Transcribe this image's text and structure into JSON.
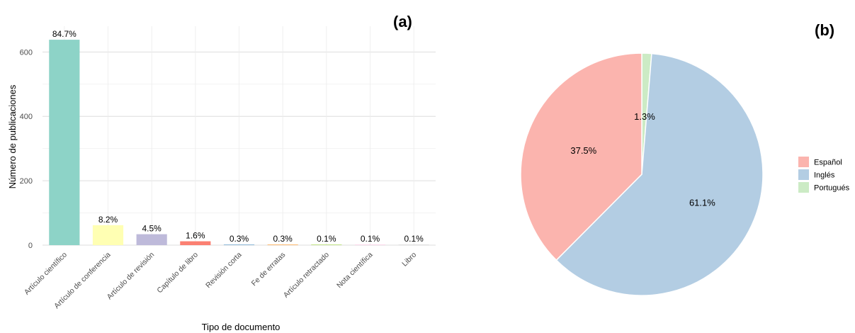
{
  "chart_data": [
    {
      "type": "bar",
      "panel_label": "(a)",
      "xlabel": "Tipo de documento",
      "ylabel": "Número de publicaciones",
      "ylim": [
        0,
        680
      ],
      "yticks": [
        "0",
        "200",
        "400",
        "600"
      ],
      "grid": true,
      "categories": [
        "Artículo científico",
        "Artículo de conferencia",
        "Artículo de revisión",
        "Capítulo de libro",
        "Revisión corta",
        "Fe de erratas",
        "Artículo retractado",
        "Nota científica",
        "Libro"
      ],
      "values": [
        638,
        62,
        34,
        12,
        2,
        2,
        1,
        1,
        1
      ],
      "labels": [
        "84.7%",
        "8.2%",
        "4.5%",
        "1.6%",
        "0.3%",
        "0.3%",
        "0.1%",
        "0.1%",
        "0.1%"
      ],
      "colors": [
        "#8dd3c7",
        "#ffffb3",
        "#bebada",
        "#fb8072",
        "#80b1d3",
        "#fdb462",
        "#b3de69",
        "#fccde5",
        "#d9d9d9"
      ]
    },
    {
      "type": "pie",
      "panel_label": "(b)",
      "categories": [
        "Español",
        "Inglés",
        "Portugués"
      ],
      "values": [
        37.5,
        61.1,
        1.3
      ],
      "labels": [
        "37.5%",
        "61.1%",
        "1.3%"
      ],
      "colors": [
        "#fbb4ae",
        "#b3cde3",
        "#ccebc5"
      ],
      "legend": "right"
    }
  ]
}
